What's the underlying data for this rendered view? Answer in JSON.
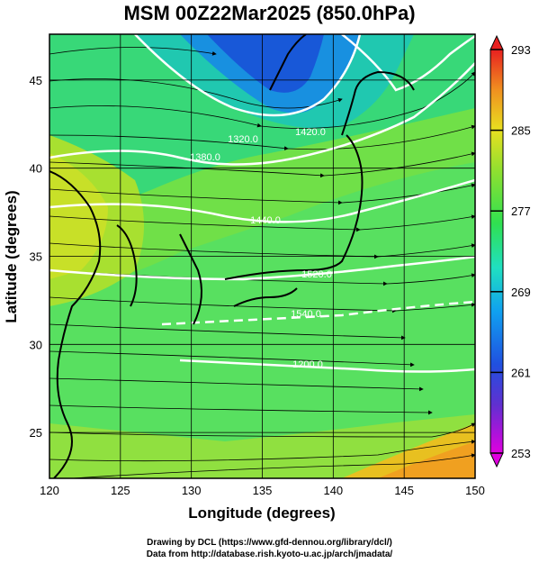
{
  "title": "MSM 00Z22Mar2025 (850.0hPa)",
  "map": {
    "x_axis": {
      "label": "Longitude  (degrees)",
      "range": [
        120,
        150
      ],
      "ticks": [
        "120",
        "125",
        "130",
        "135",
        "140",
        "145",
        "150"
      ]
    },
    "y_axis": {
      "label": "Latitude  (degrees)",
      "range": [
        22.4,
        47.6
      ],
      "ticks": [
        "25",
        "30",
        "35",
        "40",
        "45"
      ]
    },
    "field": "temperature (shaded) with geopotential height contours and streamlines",
    "contour_labels": [
      "1320.0",
      "1380.0",
      "1420.0",
      "1440.0",
      "1520.0",
      "1540.0",
      "1200.0"
    ]
  },
  "colorbar": {
    "range": [
      253,
      293
    ],
    "labels": [
      "293",
      "285",
      "277",
      "269",
      "261",
      "253"
    ]
  },
  "credits": {
    "line1": "Drawing by DCL (https://www.gfd-dennou.org/library/dcl/)",
    "line2": "Data from http://database.rish.kyoto-u.ac.jp/arch/jmadata/"
  }
}
